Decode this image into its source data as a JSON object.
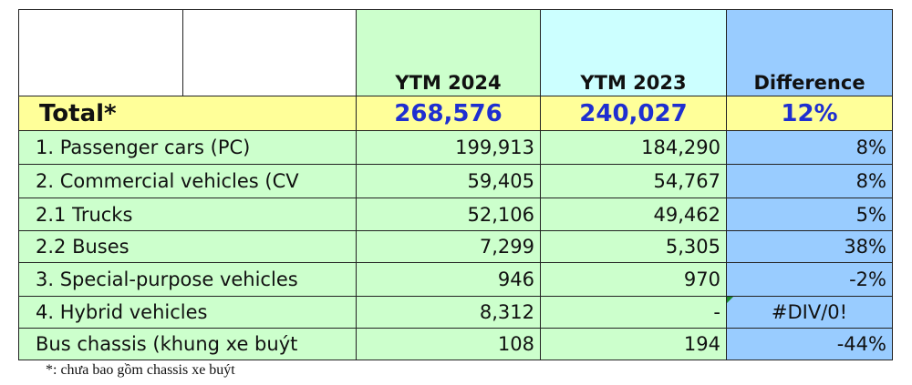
{
  "table": {
    "columns": [
      "YTM 2024",
      "YTM 2023",
      "Difference"
    ],
    "total": {
      "label": "Total*",
      "values": [
        "268,576",
        "240,027",
        "12%"
      ]
    },
    "rows": [
      [
        "1. Passenger cars (PC)",
        "199,913",
        "184,290",
        "8%"
      ],
      [
        "2. Commercial vehicles (CV",
        "59,405",
        "54,767",
        "8%"
      ],
      [
        "2.1 Trucks",
        "52,106",
        "49,462",
        "5%"
      ],
      [
        "2.2 Buses",
        "7,299",
        "5,305",
        "38%"
      ],
      [
        "3. Special-purpose vehicles",
        "946",
        "970",
        "-2%"
      ],
      [
        "4. Hybrid vehicles",
        "8,312",
        "-",
        "#DIV/0!"
      ],
      [
        "Bus chassis (khung xe buýt",
        "108",
        "194",
        "-44%"
      ]
    ]
  },
  "footnote": "*: chưa bao gồm chassis xe buýt"
}
